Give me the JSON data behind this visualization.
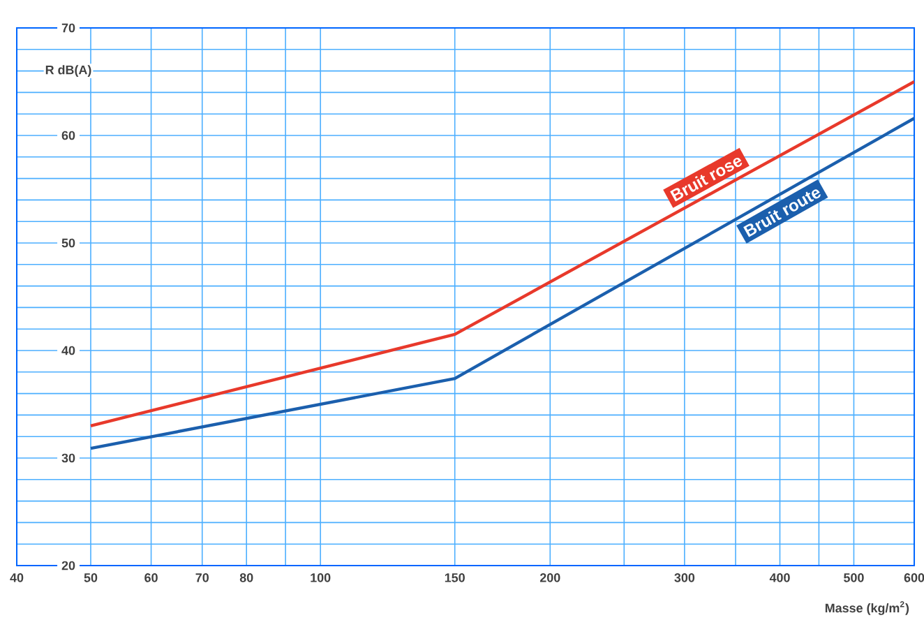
{
  "chart_data": {
    "type": "line",
    "xlabel": "Masse (kg/m$^{2}$)",
    "ylabel": "R dB(A)",
    "log": "x",
    "grid": true,
    "x": [
      50,
      150,
      600
    ],
    "series": [
      {
        "name": "Bruit rose",
        "color": "#e8392b",
        "values": [
          33,
          41.5,
          65
        ]
      },
      {
        "name": "Bruit route",
        "color": "#1b5fad",
        "values": [
          30.9,
          37.4,
          61.6
        ]
      }
    ],
    "xlim": [
      40,
      600
    ],
    "xticks": [
      40,
      50,
      60,
      70,
      80,
      {
        "value": 90,
        "label": null
      },
      100,
      150,
      200,
      {
        "value": 250,
        "label": null
      },
      300,
      {
        "value": 350,
        "label": null
      },
      400,
      {
        "value": 450,
        "label": null
      },
      500,
      600
    ],
    "ylim": [
      20,
      70
    ],
    "yticks": [
      20,
      {
        "value": 22,
        "label": null
      },
      {
        "value": 24,
        "label": null
      },
      {
        "value": 26,
        "label": null
      },
      {
        "value": 28,
        "label": null
      },
      30,
      {
        "value": 32,
        "label": null
      },
      {
        "value": 34,
        "label": null
      },
      {
        "value": 36,
        "label": null
      },
      {
        "value": 38,
        "label": null
      },
      40,
      {
        "value": 42,
        "label": null
      },
      {
        "value": 44,
        "label": null
      },
      {
        "value": 46,
        "label": null
      },
      {
        "value": 48,
        "label": null
      },
      50,
      {
        "value": 52,
        "label": null
      },
      {
        "value": 54,
        "label": null
      },
      {
        "value": 56,
        "label": null
      },
      {
        "value": 58,
        "label": null
      },
      60,
      {
        "value": 62,
        "label": null
      },
      {
        "value": 64,
        "label": null
      },
      {
        "value": 66,
        "label": null
      },
      {
        "value": 68,
        "label": null
      },
      70
    ]
  }
}
